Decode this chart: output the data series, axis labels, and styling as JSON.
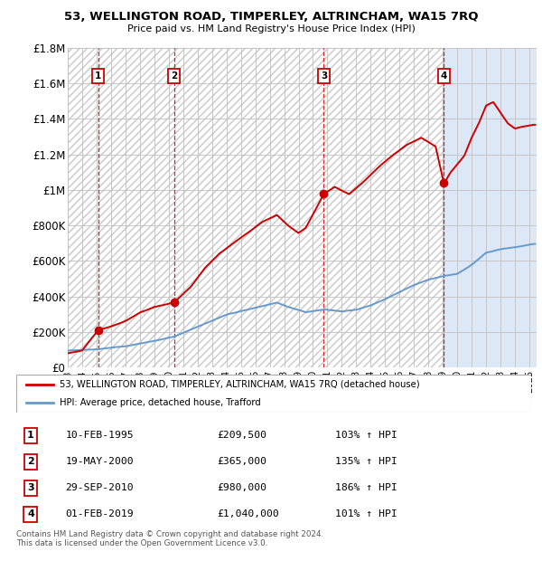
{
  "title": "53, WELLINGTON ROAD, TIMPERLEY, ALTRINCHAM, WA15 7RQ",
  "subtitle": "Price paid vs. HM Land Registry's House Price Index (HPI)",
  "ylim": [
    0,
    1800000
  ],
  "yticks": [
    0,
    200000,
    400000,
    600000,
    800000,
    1000000,
    1200000,
    1400000,
    1600000,
    1800000
  ],
  "ytick_labels": [
    "£0",
    "£200K",
    "£400K",
    "£600K",
    "£800K",
    "£1M",
    "£1.2M",
    "£1.4M",
    "£1.6M",
    "£1.8M"
  ],
  "xlim_start": 1993.0,
  "xlim_end": 2025.5,
  "sale_points": [
    {
      "num": 1,
      "year": 1995.12,
      "price": 209500
    },
    {
      "num": 2,
      "year": 2000.38,
      "price": 365000
    },
    {
      "num": 3,
      "year": 2010.75,
      "price": 980000
    },
    {
      "num": 4,
      "year": 2019.08,
      "price": 1040000
    }
  ],
  "transactions": [
    {
      "num": 1,
      "date": "10-FEB-1995",
      "price": "£209,500",
      "hpi": "103% ↑ HPI"
    },
    {
      "num": 2,
      "date": "19-MAY-2000",
      "price": "£365,000",
      "hpi": "135% ↑ HPI"
    },
    {
      "num": 3,
      "date": "29-SEP-2010",
      "price": "£980,000",
      "hpi": "186% ↑ HPI"
    },
    {
      "num": 4,
      "date": "01-FEB-2019",
      "price": "£1,040,000",
      "hpi": "101% ↑ HPI"
    }
  ],
  "red_color": "#cc0000",
  "blue_color": "#6699cc",
  "legend_line1": "53, WELLINGTON ROAD, TIMPERLEY, ALTRINCHAM, WA15 7RQ (detached house)",
  "legend_line2": "HPI: Average price, detached house, Trafford",
  "footer": "Contains HM Land Registry data © Crown copyright and database right 2024.\nThis data is licensed under the Open Government Licence v3.0."
}
